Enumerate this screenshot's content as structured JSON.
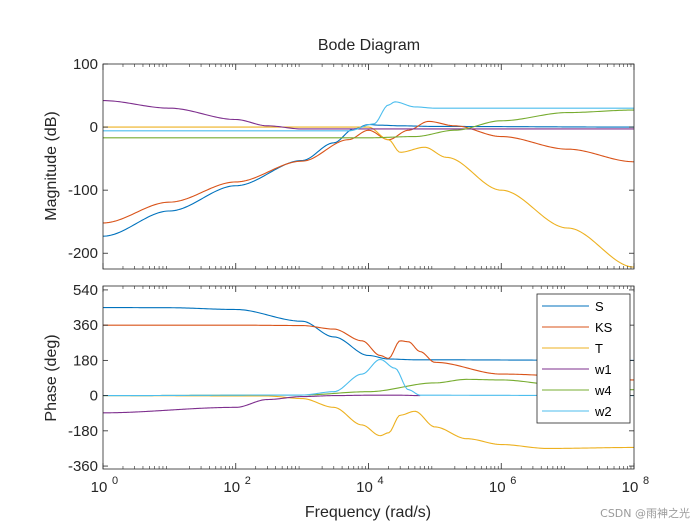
{
  "chart_data": {
    "type": "line",
    "title": "Bode Diagram",
    "xlabel": "Frequency  (rad/s)",
    "xscale": "log",
    "xlim": [
      1,
      100000000
    ],
    "x_ticks": [
      1,
      100,
      10000,
      1000000,
      100000000
    ],
    "x_tick_labels": [
      {
        "base": "10",
        "exp": "0"
      },
      {
        "base": "10",
        "exp": "2"
      },
      {
        "base": "10",
        "exp": "4"
      },
      {
        "base": "10",
        "exp": "6"
      },
      {
        "base": "10",
        "exp": "8"
      }
    ],
    "magnitude": {
      "ylabel": "Magnitude  (dB)",
      "ylim": [
        -225,
        100
      ],
      "y_ticks": [
        100,
        0,
        -100,
        -200
      ],
      "y_tick_labels": [
        "100",
        "0",
        "-100",
        "-200"
      ]
    },
    "phase": {
      "ylabel": "Phase  (deg)",
      "ylim": [
        -375,
        560
      ],
      "y_ticks": [
        540,
        360,
        180,
        0,
        -180,
        -360
      ],
      "y_tick_labels": [
        "540",
        "360",
        "180",
        "0",
        "-180",
        "-360"
      ]
    },
    "legend": {
      "location": "upper-right of phase plot"
    },
    "series": [
      {
        "name": "S",
        "color": "#0072BD",
        "magnitude": [
          [
            1,
            -173
          ],
          [
            10,
            -133
          ],
          [
            100,
            -93
          ],
          [
            1000,
            -53
          ],
          [
            3000,
            -25
          ],
          [
            6000,
            -3
          ],
          [
            10000,
            4
          ],
          [
            15000,
            3
          ],
          [
            30000,
            2
          ],
          [
            100000,
            1
          ],
          [
            100000000,
            0
          ]
        ],
        "phase": [
          [
            1,
            450
          ],
          [
            10,
            449
          ],
          [
            100,
            440
          ],
          [
            1000,
            380
          ],
          [
            3000,
            300
          ],
          [
            10000,
            205
          ],
          [
            20000,
            187
          ],
          [
            50000,
            183
          ],
          [
            100000000,
            180
          ]
        ]
      },
      {
        "name": "KS",
        "color": "#D95319",
        "magnitude": [
          [
            1,
            -152
          ],
          [
            10,
            -119
          ],
          [
            100,
            -87
          ],
          [
            1000,
            -54
          ],
          [
            5000,
            -20
          ],
          [
            10000,
            -5
          ],
          [
            20000,
            -20
          ],
          [
            40000,
            -5
          ],
          [
            80000,
            9
          ],
          [
            200000,
            2
          ],
          [
            1000000,
            -15
          ],
          [
            10000000,
            -35
          ],
          [
            100000000,
            -55
          ]
        ],
        "phase": [
          [
            1,
            360
          ],
          [
            100,
            360
          ],
          [
            1000,
            358
          ],
          [
            3000,
            340
          ],
          [
            8000,
            280
          ],
          [
            15000,
            205
          ],
          [
            20000,
            190
          ],
          [
            30000,
            280
          ],
          [
            40000,
            275
          ],
          [
            60000,
            225
          ],
          [
            100000,
            170
          ],
          [
            1000000,
            110
          ],
          [
            100000000,
            80
          ]
        ]
      },
      {
        "name": "T",
        "color": "#EDB120",
        "magnitude": [
          [
            1,
            0
          ],
          [
            10000,
            0
          ],
          [
            20000,
            -20
          ],
          [
            30000,
            -40
          ],
          [
            70000,
            -32
          ],
          [
            150000,
            -48
          ],
          [
            1000000,
            -100
          ],
          [
            10000000,
            -160
          ],
          [
            100000000,
            -222
          ]
        ],
        "phase": [
          [
            1,
            0
          ],
          [
            300,
            -2
          ],
          [
            1000,
            -15
          ],
          [
            3000,
            -60
          ],
          [
            8000,
            -150
          ],
          [
            15000,
            -205
          ],
          [
            20000,
            -190
          ],
          [
            30000,
            -100
          ],
          [
            50000,
            -80
          ],
          [
            100000,
            -160
          ],
          [
            300000,
            -220
          ],
          [
            1000000,
            -250
          ],
          [
            5000000,
            -270
          ],
          [
            100000000,
            -265
          ]
        ]
      },
      {
        "name": "w1",
        "color": "#7E2F8E",
        "magnitude": [
          [
            1,
            42
          ],
          [
            10,
            30
          ],
          [
            100,
            12
          ],
          [
            300,
            2
          ],
          [
            1000,
            -3
          ],
          [
            100000000,
            -3
          ]
        ],
        "phase": [
          [
            1,
            -88
          ],
          [
            100,
            -60
          ],
          [
            300,
            -20
          ],
          [
            1000,
            -5
          ],
          [
            3000,
            0
          ],
          [
            10000,
            2
          ],
          [
            30000,
            2
          ],
          [
            60000,
            0
          ]
        ]
      },
      {
        "name": "w4",
        "color": "#77AC30",
        "magnitude": [
          [
            1,
            -17
          ],
          [
            10000,
            -17
          ],
          [
            50000,
            -15
          ],
          [
            200000,
            -5
          ],
          [
            1000000,
            10
          ],
          [
            10000000,
            23
          ],
          [
            100000000,
            27
          ]
        ],
        "phase": [
          [
            1,
            0
          ],
          [
            1000,
            3
          ],
          [
            10000,
            20
          ],
          [
            100000,
            65
          ],
          [
            300000,
            83
          ],
          [
            1000000,
            80
          ],
          [
            10000000,
            50
          ],
          [
            100000000,
            30
          ]
        ]
      },
      {
        "name": "w2",
        "color": "#4DBEEE",
        "magnitude": [
          [
            1,
            -6
          ],
          [
            5000,
            -6
          ],
          [
            12000,
            5
          ],
          [
            20000,
            35
          ],
          [
            25000,
            40
          ],
          [
            50000,
            32
          ],
          [
            100000,
            30
          ],
          [
            100000000,
            30
          ]
        ],
        "phase": [
          [
            1,
            0
          ],
          [
            1000,
            3
          ],
          [
            3000,
            20
          ],
          [
            8000,
            110
          ],
          [
            15000,
            185
          ],
          [
            25000,
            140
          ],
          [
            40000,
            30
          ],
          [
            60000,
            2
          ],
          [
            100000000,
            0
          ]
        ]
      }
    ]
  },
  "watermark": "CSDN @雨神之光"
}
